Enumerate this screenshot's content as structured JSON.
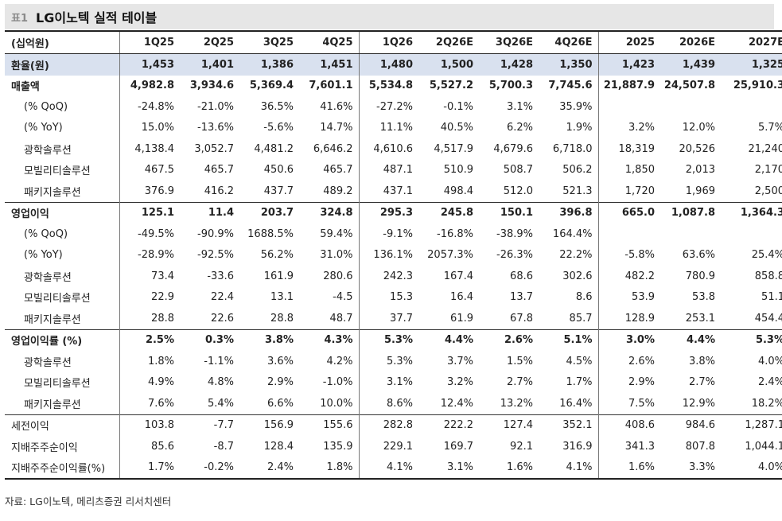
{
  "title": {
    "label": "표1",
    "text": "LG이노텍 실적 테이블"
  },
  "table": {
    "unit_header": "(십억원)",
    "columns": [
      "1Q25",
      "2Q25",
      "3Q25",
      "4Q25",
      "1Q26",
      "2Q26E",
      "3Q26E",
      "4Q26E",
      "2025",
      "2026E",
      "2027E"
    ],
    "rows": [
      {
        "label": "환율(원)",
        "values": [
          "1,453",
          "1,401",
          "1,386",
          "1,451",
          "1,480",
          "1,500",
          "1,428",
          "1,350",
          "1,423",
          "1,439",
          "1,325"
        ]
      },
      {
        "label": "매출액",
        "values": [
          "4,982.8",
          "3,934.6",
          "5,369.4",
          "7,601.1",
          "5,534.8",
          "5,527.2",
          "5,700.3",
          "7,745.6",
          "21,887.9",
          "24,507.8",
          "25,910.3"
        ]
      },
      {
        "label": "(% QoQ)",
        "values": [
          "-24.8%",
          "-21.0%",
          "36.5%",
          "41.6%",
          "-27.2%",
          "-0.1%",
          "3.1%",
          "35.9%",
          "",
          "",
          ""
        ]
      },
      {
        "label": "(% YoY)",
        "values": [
          "15.0%",
          "-13.6%",
          "-5.6%",
          "14.7%",
          "11.1%",
          "40.5%",
          "6.2%",
          "1.9%",
          "3.2%",
          "12.0%",
          "5.7%"
        ]
      },
      {
        "label": "광학솔루션",
        "values": [
          "4,138.4",
          "3,052.7",
          "4,481.2",
          "6,646.2",
          "4,610.6",
          "4,517.9",
          "4,679.6",
          "6,718.0",
          "18,319",
          "20,526",
          "21,240"
        ]
      },
      {
        "label": "모빌리티솔루션",
        "values": [
          "467.5",
          "465.7",
          "450.6",
          "465.7",
          "487.1",
          "510.9",
          "508.7",
          "506.2",
          "1,850",
          "2,013",
          "2,170"
        ]
      },
      {
        "label": "패키지솔루션",
        "values": [
          "376.9",
          "416.2",
          "437.7",
          "489.2",
          "437.1",
          "498.4",
          "512.0",
          "521.3",
          "1,720",
          "1,969",
          "2,500"
        ]
      },
      {
        "label": "영업이익",
        "values": [
          "125.1",
          "11.4",
          "203.7",
          "324.8",
          "295.3",
          "245.8",
          "150.1",
          "396.8",
          "665.0",
          "1,087.8",
          "1,364.3"
        ]
      },
      {
        "label": "(% QoQ)",
        "values": [
          "-49.5%",
          "-90.9%",
          "1688.5%",
          "59.4%",
          "-9.1%",
          "-16.8%",
          "-38.9%",
          "164.4%",
          "",
          "",
          ""
        ]
      },
      {
        "label": "(% YoY)",
        "values": [
          "-28.9%",
          "-92.5%",
          "56.2%",
          "31.0%",
          "136.1%",
          "2057.3%",
          "-26.3%",
          "22.2%",
          "-5.8%",
          "63.6%",
          "25.4%"
        ]
      },
      {
        "label": "광학솔루션",
        "values": [
          "73.4",
          "-33.6",
          "161.9",
          "280.6",
          "242.3",
          "167.4",
          "68.6",
          "302.6",
          "482.2",
          "780.9",
          "858.8"
        ]
      },
      {
        "label": "모빌리티솔루션",
        "values": [
          "22.9",
          "22.4",
          "13.1",
          "-4.5",
          "15.3",
          "16.4",
          "13.7",
          "8.6",
          "53.9",
          "53.8",
          "51.1"
        ]
      },
      {
        "label": "패키지솔루션",
        "values": [
          "28.8",
          "22.6",
          "28.8",
          "48.7",
          "37.7",
          "61.9",
          "67.8",
          "85.7",
          "128.9",
          "253.1",
          "454.4"
        ]
      },
      {
        "label": "영업이익률 (%)",
        "values": [
          "2.5%",
          "0.3%",
          "3.8%",
          "4.3%",
          "5.3%",
          "4.4%",
          "2.6%",
          "5.1%",
          "3.0%",
          "4.4%",
          "5.3%"
        ]
      },
      {
        "label": "광학솔루션",
        "values": [
          "1.8%",
          "-1.1%",
          "3.6%",
          "4.2%",
          "5.3%",
          "3.7%",
          "1.5%",
          "4.5%",
          "2.6%",
          "3.8%",
          "4.0%"
        ]
      },
      {
        "label": "모빌리티솔루션",
        "values": [
          "4.9%",
          "4.8%",
          "2.9%",
          "-1.0%",
          "3.1%",
          "3.2%",
          "2.7%",
          "1.7%",
          "2.9%",
          "2.7%",
          "2.4%"
        ]
      },
      {
        "label": "패키지솔루션",
        "values": [
          "7.6%",
          "5.4%",
          "6.6%",
          "10.0%",
          "8.6%",
          "12.4%",
          "13.2%",
          "16.4%",
          "7.5%",
          "12.9%",
          "18.2%"
        ]
      },
      {
        "label": "세전이익",
        "values": [
          "103.8",
          "-7.7",
          "156.9",
          "155.6",
          "282.8",
          "222.2",
          "127.4",
          "352.1",
          "408.6",
          "984.6",
          "1,287.1"
        ]
      },
      {
        "label": "지배주주순이익",
        "values": [
          "85.6",
          "-8.7",
          "128.4",
          "135.9",
          "229.1",
          "169.7",
          "92.1",
          "316.9",
          "341.3",
          "807.8",
          "1,044.1"
        ]
      },
      {
        "label": "지배주주순이익률(%)",
        "values": [
          "1.7%",
          "-0.2%",
          "2.4%",
          "1.8%",
          "4.1%",
          "3.1%",
          "1.6%",
          "4.1%",
          "1.6%",
          "3.3%",
          "4.0%"
        ]
      }
    ]
  },
  "source": "자료: LG이노텍, 메리츠증권 리서치센터",
  "colors": {
    "title_bg": "#e6e6e6",
    "highlight_row": "#d9e1ef"
  }
}
